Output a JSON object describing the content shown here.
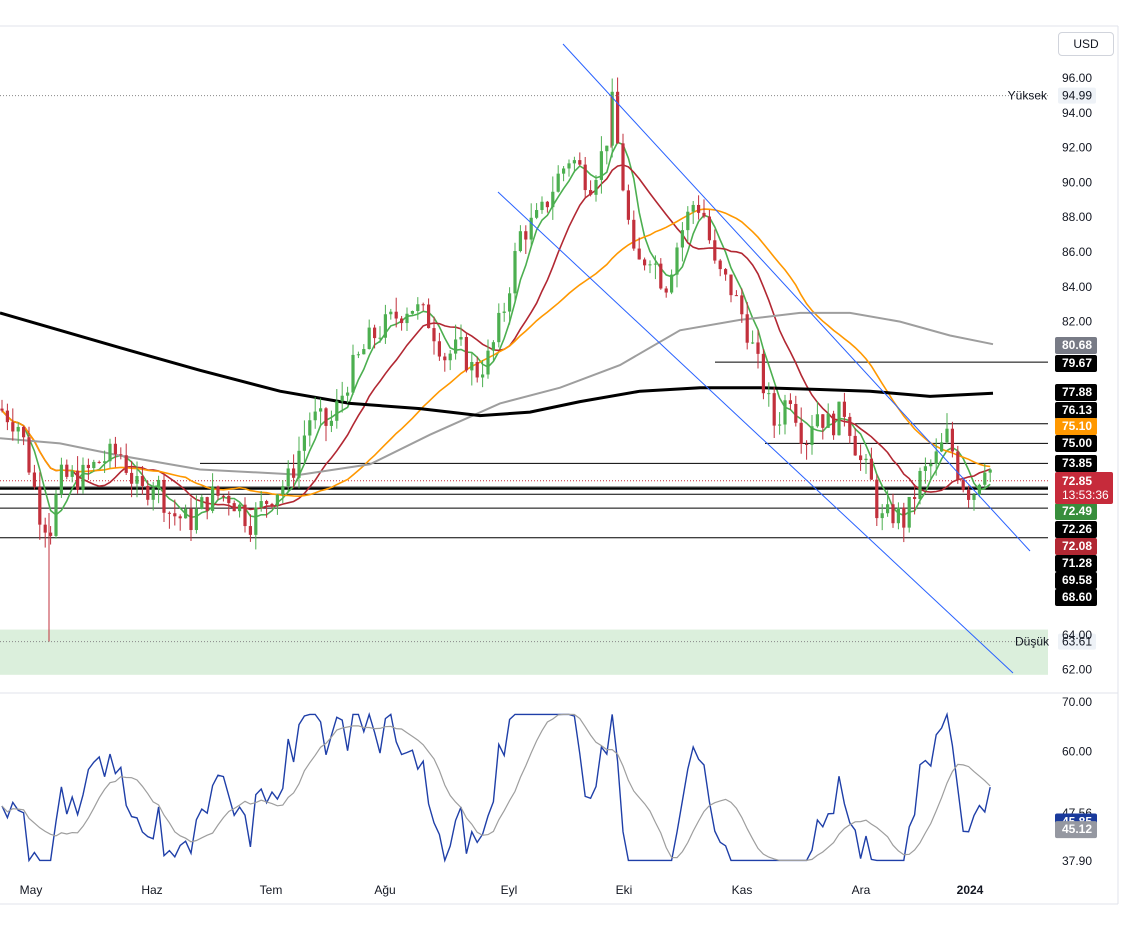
{
  "currency": "USD",
  "chart_data": {
    "type": "candlestick",
    "price_axis": {
      "min": 61.3,
      "max": 97.0,
      "ticks": [
        "96.00",
        "94.00",
        "92.00",
        "90.00",
        "88.00",
        "86.00",
        "84.00",
        "82.00",
        "64.00",
        "62.00"
      ]
    },
    "osc_axis": {
      "ticks": [
        "70.00",
        "60.00",
        "47.56",
        "37.90"
      ]
    },
    "x_labels": [
      {
        "label": "May",
        "bold": false
      },
      {
        "label": "Haz",
        "bold": false
      },
      {
        "label": "Tem",
        "bold": false
      },
      {
        "label": "Ağu",
        "bold": false
      },
      {
        "label": "Eyl",
        "bold": false
      },
      {
        "label": "Eki",
        "bold": false
      },
      {
        "label": "Kas",
        "bold": false
      },
      {
        "label": "Ara",
        "bold": false
      },
      {
        "label": "2024",
        "bold": true
      }
    ],
    "high_marker": {
      "label": "Yüksek",
      "value": "94.99"
    },
    "low_marker": {
      "label": "Düşük",
      "value": "63.61"
    },
    "price_labels": [
      {
        "text": "80.68",
        "bg": "#787b86",
        "fg": "#ffffff"
      },
      {
        "text": "79.67",
        "bg": "#000000",
        "fg": "#ffffff"
      },
      {
        "text": "77.88",
        "bg": "#000000",
        "fg": "#ffffff"
      },
      {
        "text": "76.13",
        "bg": "#000000",
        "fg": "#ffffff"
      },
      {
        "text": "75.10",
        "bg": "#ff9800",
        "fg": "#ffffff"
      },
      {
        "text": "75.00",
        "bg": "#000000",
        "fg": "#ffffff"
      },
      {
        "text": "73.85",
        "bg": "#000000",
        "fg": "#ffffff"
      },
      {
        "text": "72.49",
        "bg": "#388e3c",
        "fg": "#ffffff"
      },
      {
        "text": "72.26",
        "bg": "#000000",
        "fg": "#ffffff"
      },
      {
        "text": "72.08",
        "bg": "#b22833",
        "fg": "#ffffff"
      },
      {
        "text": "71.28",
        "bg": "#000000",
        "fg": "#ffffff"
      },
      {
        "text": "69.58",
        "bg": "#000000",
        "fg": "#ffffff"
      },
      {
        "text": "68.60",
        "bg": "#000000",
        "fg": "#ffffff"
      }
    ],
    "last_price": {
      "value": "72.85",
      "countdown": "13:53:36",
      "color": "#c62b3b"
    },
    "osc_labels": [
      {
        "text": "45.85",
        "bg": "#1a3a9c",
        "fg": "#ffffff"
      },
      {
        "text": "45.12",
        "bg": "#9598a1",
        "fg": "#ffffff"
      }
    ],
    "horizontal_levels": [
      79.67,
      76.13,
      75.0,
      73.85,
      72.49,
      72.08,
      71.28,
      69.58
    ],
    "channel_lines": [
      {
        "from": [
          "Eyl",
          97
        ],
        "to": [
          "Ara",
          67.5
        ],
        "color": "#2962ff"
      },
      {
        "from": [
          "Eyl",
          89.5
        ],
        "to": [
          "Oca",
          61.7
        ],
        "color": "#2962ff"
      }
    ],
    "support_zone": [
      61.7,
      64.3
    ],
    "colors": {
      "up": "#4caf50",
      "down": "#c2303c",
      "ma_fast": "#4caf50",
      "ma_mid": "#b22833",
      "ma_slow": "#ff9800",
      "ma_grey": "#9e9e9e",
      "ma_long": "#000000",
      "rsi": "#1f3fa8",
      "rsi_ma": "#9e9e9e"
    }
  }
}
